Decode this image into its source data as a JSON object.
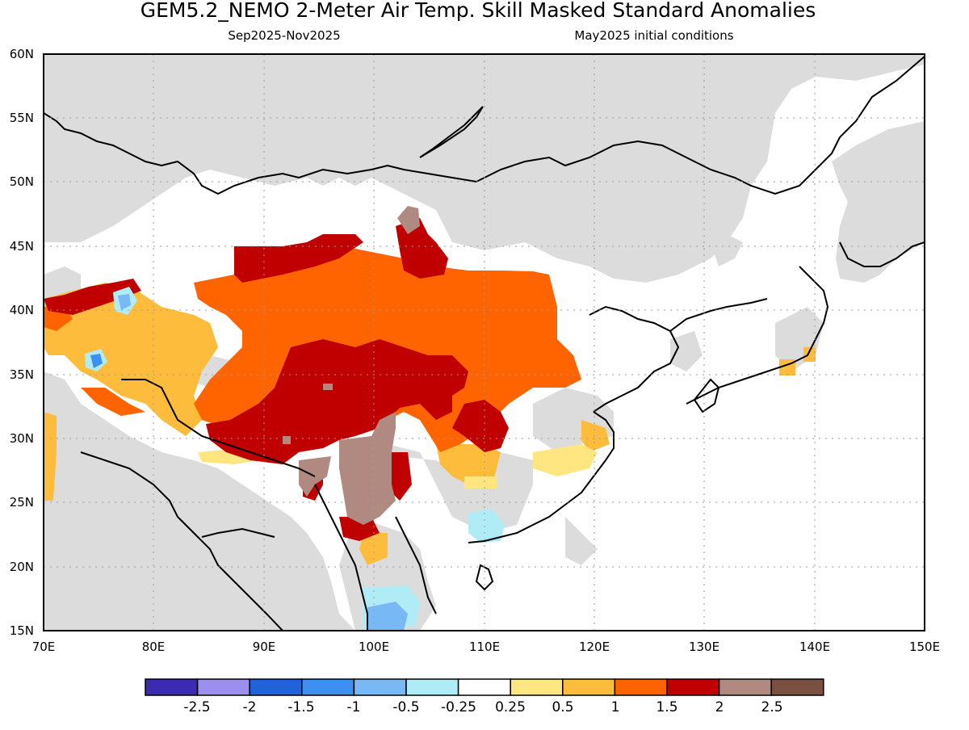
{
  "header": {
    "title": "GEM5.2_NEMO 2-Meter Air Temp. Skill Masked Standard Anomalies",
    "period": "Sep2025-Nov2025",
    "initial_conditions": "May2025 initial conditions"
  },
  "map": {
    "lat_labels": [
      "60N",
      "55N",
      "50N",
      "45N",
      "40N",
      "35N",
      "30N",
      "25N",
      "20N",
      "15N"
    ],
    "lon_labels": [
      "70E",
      "80E",
      "90E",
      "100E",
      "110E",
      "120E",
      "130E",
      "140E",
      "150E"
    ],
    "colors": {
      "masked": "#dcdcdc",
      "ocean": "#ffffff",
      "coast": "#000000",
      "grid": "#9a9a9a"
    }
  },
  "colorbar": {
    "labels": [
      "-2.5",
      "-2",
      "-1.5",
      "-1",
      "-0.5",
      "-0.25",
      "0.25",
      "0.5",
      "1",
      "1.5",
      "2",
      "2.5"
    ],
    "colors": [
      "#3a2bb0",
      "#9b8ef0",
      "#1f63d8",
      "#3d8ff0",
      "#78b8f5",
      "#b0ecf5",
      "#ffffff",
      "#ffe680",
      "#fdbc3c",
      "#ff6400",
      "#c00000",
      "#b08a80",
      "#7a5040"
    ]
  }
}
